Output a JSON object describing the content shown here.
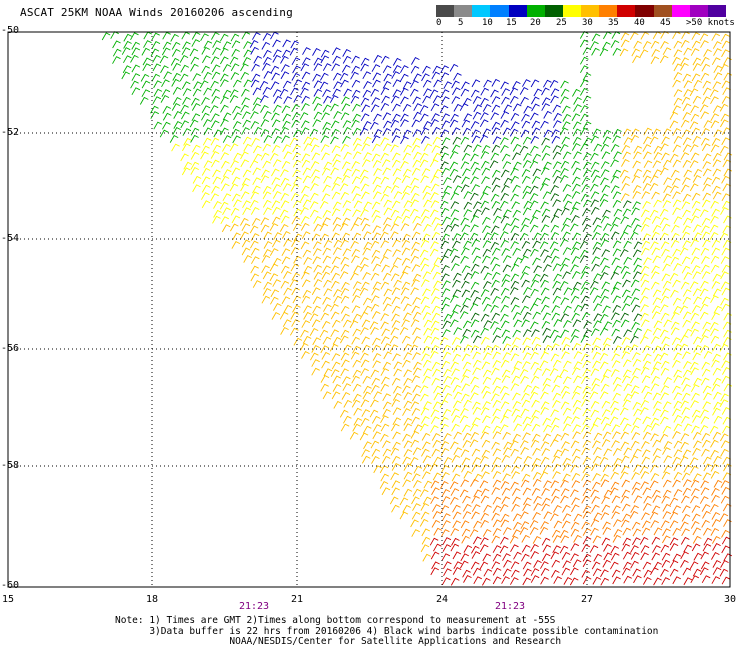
{
  "title": "ASCAT 25KM NOAA Winds 20160206 ascending",
  "legend": {
    "labels": [
      "0",
      "5",
      "10",
      "15",
      "20",
      "25",
      "30",
      "35",
      "40",
      "45",
      ">50 knots"
    ],
    "colors": [
      "#4a4a4a",
      "#8a8a8a",
      "#00c8ff",
      "#0080ff",
      "#0000c0",
      "#00b000",
      "#006000",
      "#ffff00",
      "#ffc000",
      "#ff8000",
      "#d00000",
      "#800000",
      "#a05020",
      "#ff00ff",
      "#a000c0",
      "#5000a0"
    ]
  },
  "map": {
    "lon_ticks": [
      15,
      18,
      21,
      24,
      27,
      30
    ],
    "lat_ticks": [
      -50,
      -52,
      -54,
      -56,
      -58,
      -60
    ],
    "lon_range": [
      15,
      30
    ],
    "lat_range": [
      -50,
      -60
    ],
    "grid_lines": "dotted"
  },
  "axis": {
    "x_labels": [
      "15",
      "18",
      "21",
      "24",
      "27",
      "30"
    ],
    "y_labels": [
      "-50",
      "-52",
      "-54",
      "-56",
      "-58",
      "-60"
    ]
  },
  "times": [
    "21:23",
    "21:23"
  ],
  "notes": {
    "line1": "Note: 1) Times are GMT 2)Times along bottom correspond to measurement at -55S",
    "line2": "      3)Data buffer is 22 hrs from 20160206 4) Black wind barbs indicate possible contamination",
    "line3": "                    NOAA/NESDIS/Center for Satellite Applications and Research"
  }
}
